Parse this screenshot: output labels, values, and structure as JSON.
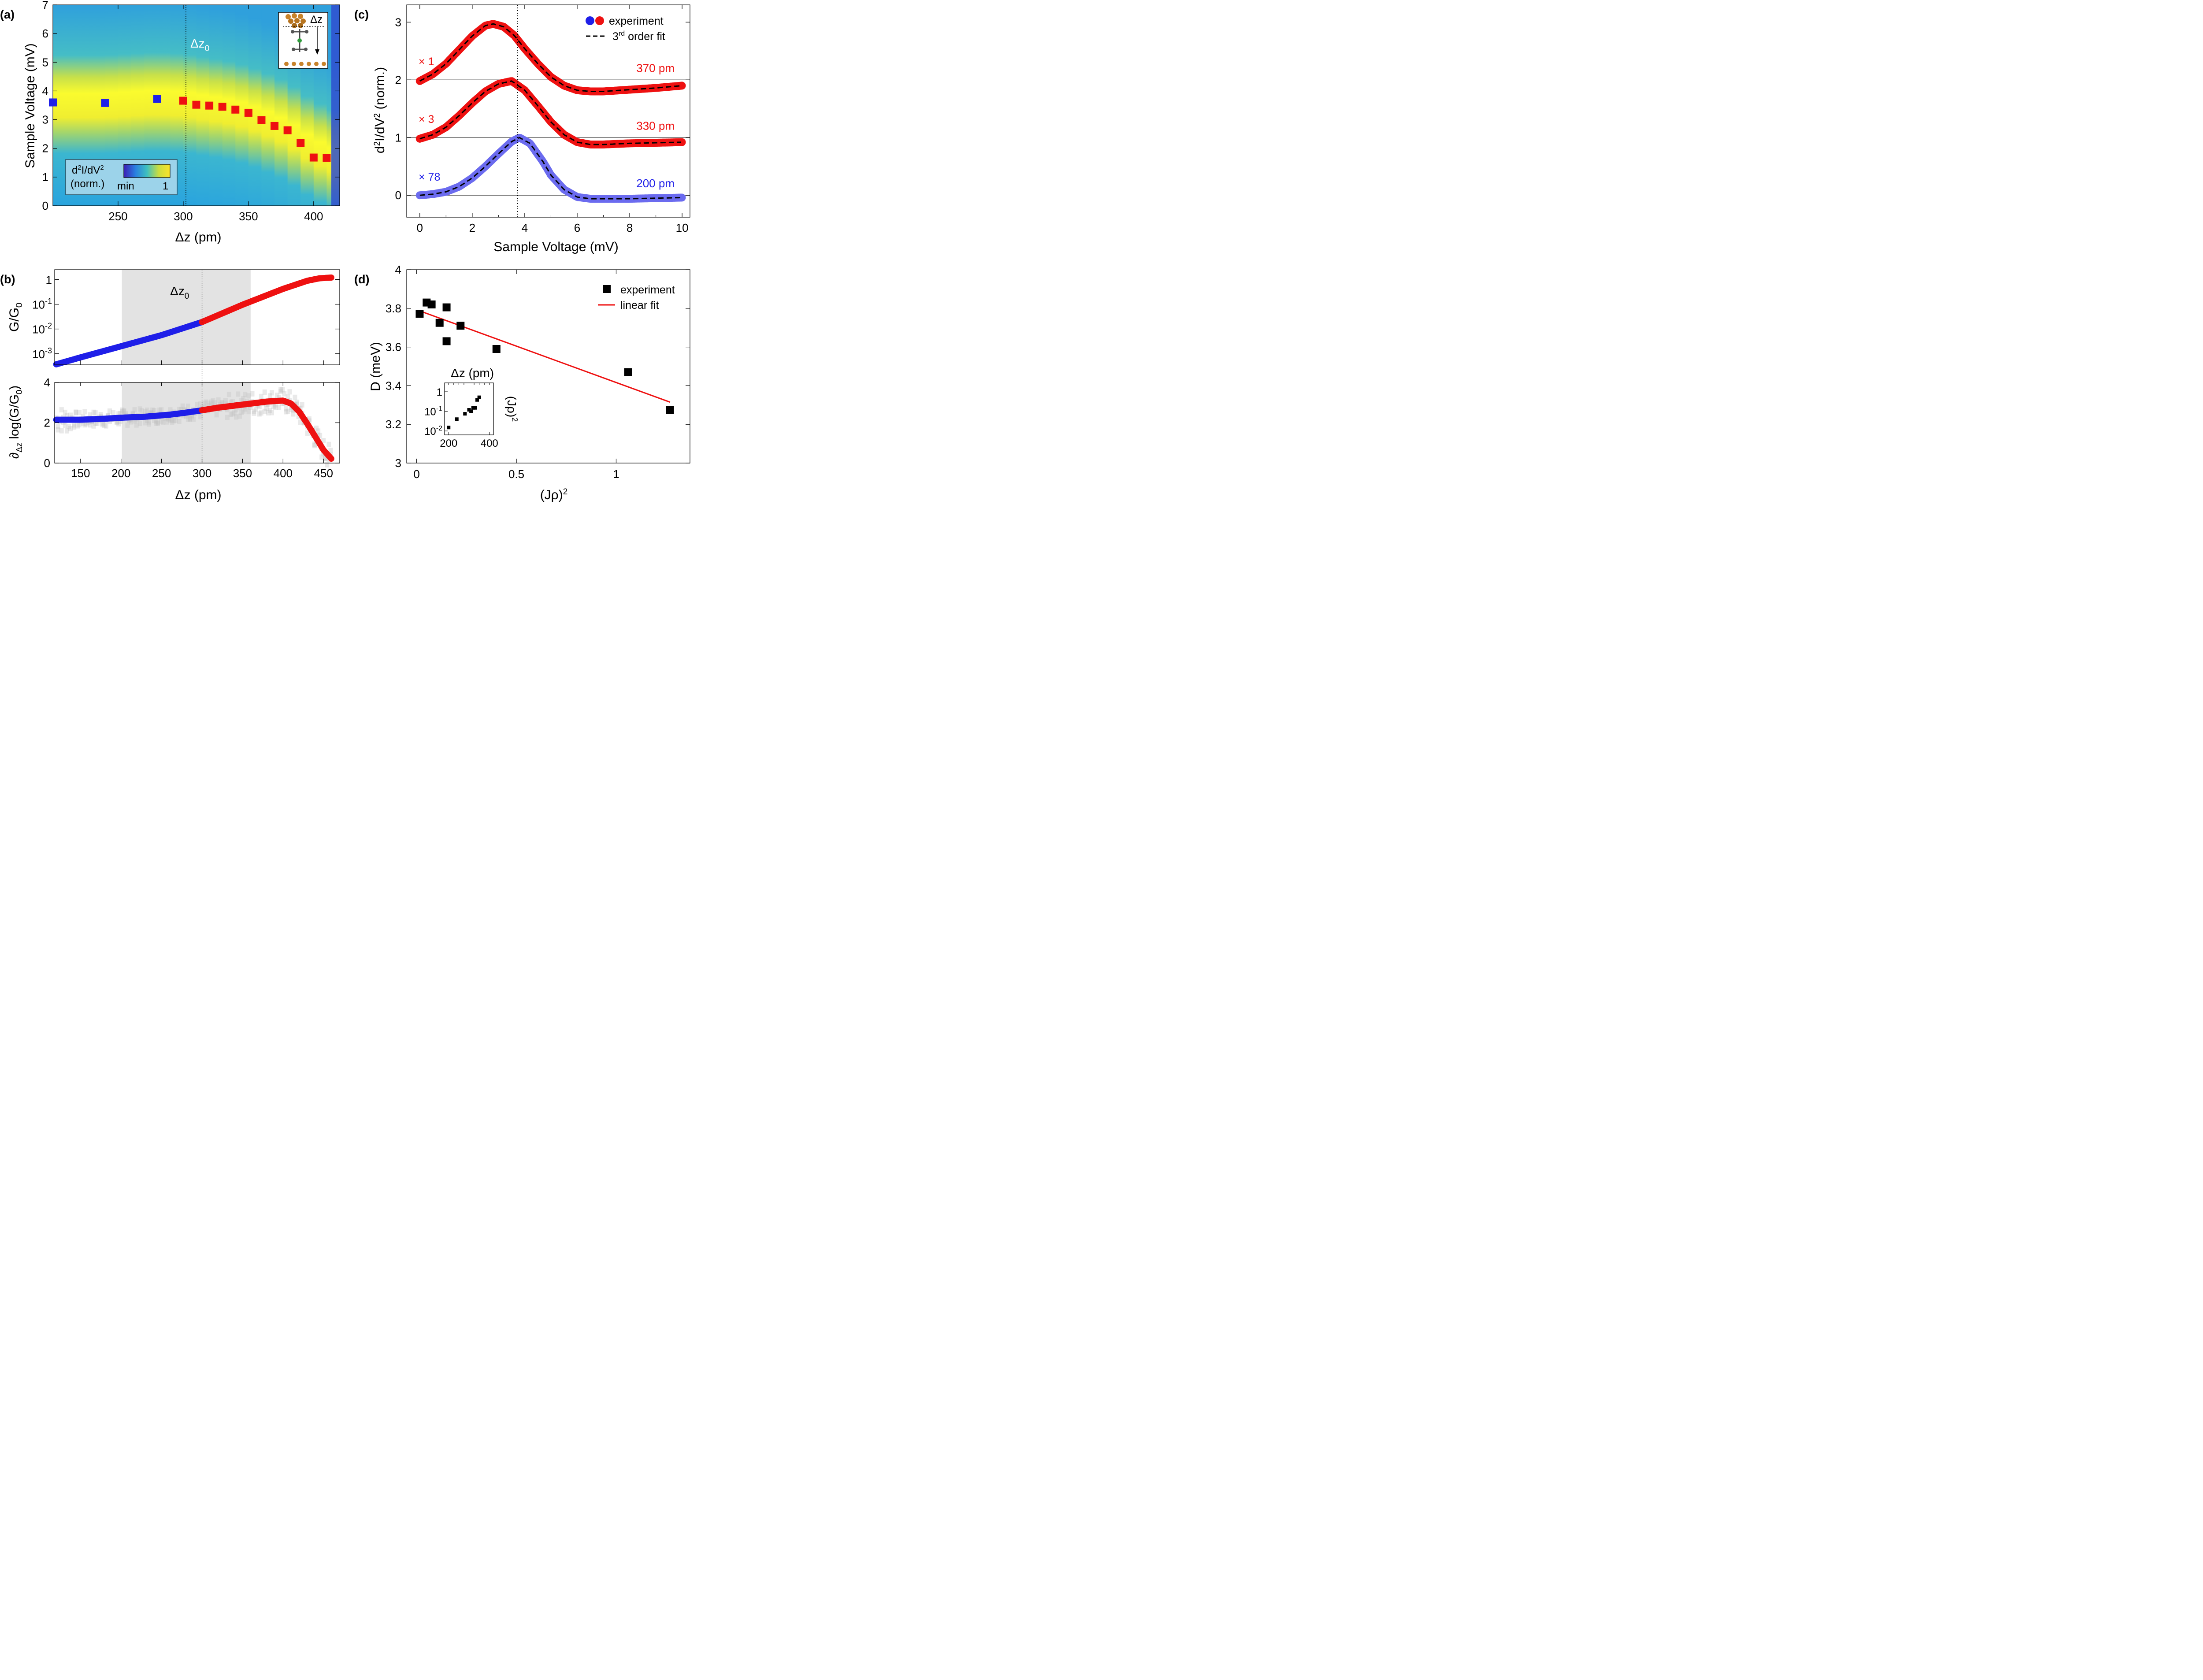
{
  "chart_data": [
    {
      "id": "a",
      "type": "heatmap",
      "panel_label": "(a)",
      "xlabel": "Δz (pm)",
      "ylabel": "Sample Voltage (mV)",
      "xlim": [
        200,
        420
      ],
      "ylim": [
        0,
        7
      ],
      "xticks": [
        250,
        300,
        350,
        400
      ],
      "yticks": [
        0,
        1,
        2,
        3,
        4,
        5,
        6,
        7
      ],
      "vline_label": "Δz",
      "vline_sub": "0",
      "vline_x": 300,
      "inset_label": "Δz",
      "colorbar": {
        "title_main": "d",
        "title_sup1": "2",
        "title_mid": "I/dV",
        "title_sup2": "2",
        "subtitle": "(norm.)",
        "min_label": "min",
        "max_label": "1"
      },
      "ridge": {
        "x": [
          200,
          240,
          280,
          300,
          320,
          340,
          360,
          380,
          400,
          420
        ],
        "y": [
          3.6,
          3.6,
          3.7,
          3.65,
          3.5,
          3.35,
          3.05,
          2.65,
          2.0,
          1.6
        ]
      },
      "series": [
        {
          "name": "blue",
          "color": "#1f1fe8",
          "x": [
            200,
            240,
            280
          ],
          "y": [
            3.6,
            3.58,
            3.72
          ]
        },
        {
          "name": "red",
          "color": "#ee1111",
          "x": [
            300,
            310,
            320,
            330,
            340,
            350,
            360,
            370,
            380,
            390,
            400,
            410
          ],
          "y": [
            3.66,
            3.52,
            3.49,
            3.45,
            3.35,
            3.24,
            2.98,
            2.78,
            2.63,
            2.18,
            1.68,
            1.67
          ]
        }
      ]
    },
    {
      "id": "b_top",
      "type": "line",
      "panel_label": "(b)",
      "ylabel_main": "G/G",
      "ylabel_sub": "0",
      "xlim": [
        118,
        470
      ],
      "ylim_log10": [
        -3.45,
        0.4
      ],
      "yticks": [
        {
          "log": -3,
          "base": "10",
          "exp": "-3"
        },
        {
          "log": -2,
          "base": "10",
          "exp": "-2"
        },
        {
          "log": -1,
          "base": "10",
          "exp": "-1"
        },
        {
          "log": 0,
          "base": "1",
          "exp": ""
        }
      ],
      "shade": [
        201,
        360
      ],
      "vline_x": 300,
      "vline_label": "Δz",
      "vline_sub": "0",
      "series": [
        {
          "name": "blue",
          "color": "#1f1fe8",
          "x": [
            120,
            150,
            200,
            250,
            300
          ],
          "y_log10": [
            -3.43,
            -3.15,
            -2.7,
            -2.25,
            -1.72
          ]
        },
        {
          "name": "red",
          "color": "#ee1111",
          "x": [
            300,
            350,
            400,
            430,
            445,
            460
          ],
          "y_log10": [
            -1.72,
            -1.02,
            -0.38,
            -0.05,
            0.05,
            0.08
          ]
        }
      ]
    },
    {
      "id": "b_bottom",
      "type": "line",
      "xlabel": "Δz (pm)",
      "ylabel_pre": "∂",
      "ylabel_sub": "Δz",
      "ylabel_post": " log(G/G",
      "ylabel_sub2": "0",
      "ylabel_end": ")",
      "xlim": [
        118,
        470
      ],
      "ylim": [
        0,
        4
      ],
      "xticks": [
        150,
        200,
        250,
        300,
        350,
        400,
        450
      ],
      "yticks": [
        0,
        2,
        4
      ],
      "shade": [
        201,
        360
      ],
      "vline_x": 300,
      "series": [
        {
          "name": "blue",
          "color": "#1f1fe8",
          "x": [
            120,
            150,
            180,
            200,
            230,
            260,
            280,
            300
          ],
          "y": [
            2.15,
            2.15,
            2.2,
            2.25,
            2.3,
            2.4,
            2.5,
            2.62
          ]
        },
        {
          "name": "red",
          "color": "#ee1111",
          "x": [
            300,
            320,
            340,
            360,
            380,
            400,
            410,
            420,
            430,
            440,
            450,
            460
          ],
          "y": [
            2.62,
            2.75,
            2.85,
            2.95,
            3.05,
            3.1,
            2.95,
            2.55,
            1.95,
            1.3,
            0.65,
            0.2
          ]
        }
      ]
    },
    {
      "id": "c",
      "type": "line",
      "panel_label": "(c)",
      "xlabel": "Sample Voltage (mV)",
      "ylabel_main": "d",
      "ylabel_sup1": "2",
      "ylabel_mid": "I/dV",
      "ylabel_sup2": "2",
      "ylabel_end": " (norm.)",
      "xlim": [
        -0.5,
        10.3
      ],
      "ylim": [
        -0.38,
        3.3
      ],
      "xticks": [
        0,
        2,
        4,
        6,
        8,
        10
      ],
      "yticks": [
        0,
        1,
        2,
        3
      ],
      "baselines": [
        0,
        1,
        2
      ],
      "vline_x": 3.72,
      "legend": {
        "exp_label": "experiment",
        "fit_main": "3",
        "fit_sup": "rd",
        "fit_post": " order fit"
      },
      "series": [
        {
          "name": "370 pm",
          "multiplier": "× 1",
          "color": "#ee1111",
          "offset": 2,
          "x": [
            0,
            0.5,
            1,
            1.5,
            2,
            2.5,
            2.8,
            3.2,
            3.6,
            4,
            4.5,
            5,
            5.5,
            6,
            6.5,
            7,
            8,
            9,
            10
          ],
          "y": [
            -0.02,
            0.1,
            0.28,
            0.52,
            0.76,
            0.94,
            0.97,
            0.92,
            0.77,
            0.54,
            0.28,
            0.05,
            -0.1,
            -0.18,
            -0.2,
            -0.2,
            -0.17,
            -0.14,
            -0.1
          ]
        },
        {
          "name": "330 pm",
          "multiplier": "× 3",
          "color": "#ee1111",
          "offset": 1,
          "x": [
            0,
            0.5,
            1,
            1.5,
            2,
            2.5,
            3,
            3.5,
            4,
            4.5,
            5,
            5.5,
            6,
            6.5,
            7,
            8,
            9,
            10
          ],
          "y": [
            -0.02,
            0.05,
            0.18,
            0.38,
            0.6,
            0.8,
            0.93,
            0.98,
            0.82,
            0.55,
            0.27,
            0.05,
            -0.08,
            -0.12,
            -0.12,
            -0.1,
            -0.09,
            -0.08
          ]
        },
        {
          "name": "200 pm",
          "multiplier": "× 78",
          "color": "#6b6bef",
          "offset": 0,
          "x": [
            0,
            0.5,
            1,
            1.5,
            2,
            2.5,
            3,
            3.5,
            3.8,
            4.2,
            4.7,
            5,
            5.5,
            6,
            6.5,
            7,
            8,
            9,
            10
          ],
          "y": [
            0,
            0.02,
            0.06,
            0.15,
            0.3,
            0.5,
            0.72,
            0.93,
            1.0,
            0.9,
            0.58,
            0.35,
            0.1,
            -0.03,
            -0.06,
            -0.06,
            -0.06,
            -0.05,
            -0.04
          ]
        }
      ]
    },
    {
      "id": "d",
      "type": "scatter",
      "panel_label": "(d)",
      "xlabel_main": "(Jρ)",
      "xlabel_sup": "2",
      "ylabel": "D (meV)",
      "xlim": [
        -0.05,
        1.37
      ],
      "ylim": [
        3.0,
        4.0
      ],
      "xticks": [
        0,
        0.5,
        1
      ],
      "xtick_labels": [
        "0",
        "0.5",
        "1"
      ],
      "yticks": [
        3.0,
        3.2,
        3.4,
        3.6,
        3.8,
        4.0
      ],
      "ytick_labels": [
        "3",
        "3.2",
        "3.4",
        "3.6",
        "3.8",
        "4"
      ],
      "legend": {
        "exp_label": "experiment",
        "fit_label": "linear fit"
      },
      "points": {
        "x": [
          0.015,
          0.05,
          0.075,
          0.115,
          0.15,
          0.15,
          0.22,
          0.4,
          1.06,
          1.27
        ],
        "y": [
          3.772,
          3.83,
          3.82,
          3.725,
          3.805,
          3.63,
          3.71,
          3.59,
          3.47,
          3.275
        ]
      },
      "fit": {
        "color": "#ee1111",
        "x": [
          0.02,
          1.27
        ],
        "y": [
          3.785,
          3.315
        ]
      },
      "inset": {
        "title": "Δz (pm)",
        "ylabel_main": "(Jρ)",
        "ylabel_sup": "2",
        "xlim": [
          180,
          420
        ],
        "ylim_log10": [
          -2.2,
          0.45
        ],
        "xticks": [
          200,
          400
        ],
        "yticks": [
          {
            "log": -2,
            "base": "10",
            "exp": "-2"
          },
          {
            "log": -1,
            "base": "10",
            "exp": "-1"
          },
          {
            "log": 0,
            "base": "1",
            "exp": ""
          }
        ],
        "x": [
          200,
          240,
          280,
          300,
          310,
          320,
          330,
          340,
          350
        ],
        "y": [
          0.015,
          0.04,
          0.075,
          0.12,
          0.1,
          0.15,
          0.15,
          0.38,
          0.52
        ]
      }
    }
  ]
}
